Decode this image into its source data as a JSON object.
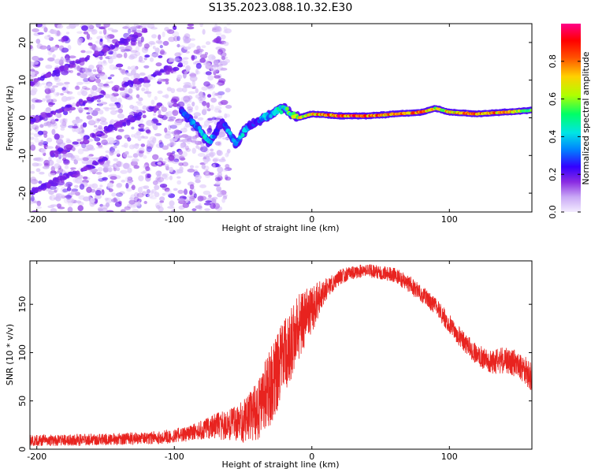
{
  "figure_title": "S135.2023.088.10.32.E30",
  "chart_data": [
    {
      "type": "heatmap",
      "panel": "top",
      "xlabel": "Height of straight line (km)",
      "ylabel": "Frequency (Hz)",
      "xlim": [
        -205,
        160
      ],
      "ylim": [
        -25,
        25
      ],
      "xticks": [
        -200,
        -100,
        0,
        100
      ],
      "yticks": [
        20,
        10,
        0,
        -10,
        -20
      ],
      "grid": false,
      "colorbar": {
        "label": "Normalized spectral amplitude",
        "range": [
          0,
          1
        ],
        "ticks": [
          0.0,
          0.2,
          0.4,
          0.6,
          0.8
        ],
        "colormap": [
          "#f0e6ff",
          "#c9a8f5",
          "#8a2be2",
          "#3300ff",
          "#0080ff",
          "#00e5e5",
          "#00ff66",
          "#b0ff00",
          "#ffd000",
          "#ff5000",
          "#ff0000",
          "#ff0088"
        ]
      },
      "features": {
        "noise_region_x": [
          -205,
          -60
        ],
        "ridge": [
          {
            "x": -95,
            "y": 2,
            "amplitude": 0.35
          },
          {
            "x": -90,
            "y": 0,
            "amplitude": 0.3
          },
          {
            "x": -85,
            "y": -2,
            "amplitude": 0.4
          },
          {
            "x": -80,
            "y": -4,
            "amplitude": 0.45
          },
          {
            "x": -75,
            "y": -6.5,
            "amplitude": 0.55
          },
          {
            "x": -70,
            "y": -4,
            "amplitude": 0.3
          },
          {
            "x": -65,
            "y": -1,
            "amplitude": 0.25
          },
          {
            "x": -60,
            "y": -4,
            "amplitude": 0.45
          },
          {
            "x": -55,
            "y": -7,
            "amplitude": 0.35
          },
          {
            "x": -50,
            "y": -4,
            "amplitude": 0.5
          },
          {
            "x": -45,
            "y": -2,
            "amplitude": 0.3
          },
          {
            "x": -40,
            "y": -1,
            "amplitude": 0.3
          },
          {
            "x": -35,
            "y": 0,
            "amplitude": 0.45
          },
          {
            "x": -30,
            "y": 0.5,
            "amplitude": 0.4
          },
          {
            "x": -25,
            "y": 2,
            "amplitude": 0.55
          },
          {
            "x": -20,
            "y": 2.5,
            "amplitude": 0.5
          },
          {
            "x": -15,
            "y": 1,
            "amplitude": 0.6
          },
          {
            "x": -10,
            "y": 0,
            "amplitude": 0.7
          },
          {
            "x": 0,
            "y": 1,
            "amplitude": 0.75
          },
          {
            "x": 20,
            "y": 0.5,
            "amplitude": 0.9
          },
          {
            "x": 40,
            "y": 0.5,
            "amplitude": 0.85
          },
          {
            "x": 60,
            "y": 1,
            "amplitude": 0.8
          },
          {
            "x": 80,
            "y": 1.5,
            "amplitude": 0.85
          },
          {
            "x": 90,
            "y": 2.5,
            "amplitude": 0.7
          },
          {
            "x": 100,
            "y": 1.5,
            "amplitude": 0.75
          },
          {
            "x": 120,
            "y": 1,
            "amplitude": 0.85
          },
          {
            "x": 140,
            "y": 1.5,
            "amplitude": 0.8
          },
          {
            "x": 160,
            "y": 2,
            "amplitude": 0.6
          }
        ]
      }
    },
    {
      "type": "line",
      "panel": "bottom",
      "xlabel": "Height of straight line (km)",
      "ylabel": "SNR (10 * v/v)",
      "xlim": [
        -205,
        160
      ],
      "ylim": [
        0,
        195
      ],
      "xticks": [
        -200,
        -100,
        0,
        100
      ],
      "yticks": [
        0,
        50,
        100,
        150
      ],
      "grid": false,
      "color": "#e8231f",
      "envelope": {
        "x": [
          -205,
          -150,
          -110,
          -90,
          -80,
          -70,
          -60,
          -50,
          -40,
          -30,
          -20,
          -10,
          0,
          10,
          20,
          30,
          40,
          50,
          60,
          70,
          80,
          90,
          100,
          110,
          120,
          130,
          140,
          150,
          160
        ],
        "y": [
          9,
          10,
          12,
          16,
          20,
          24,
          25,
          28,
          40,
          65,
          95,
          125,
          145,
          165,
          178,
          183,
          185,
          183,
          180,
          172,
          160,
          148,
          130,
          112,
          98,
          90,
          92,
          88,
          75
        ],
        "spread": [
          6,
          6,
          7,
          8,
          10,
          14,
          16,
          22,
          32,
          40,
          40,
          35,
          25,
          12,
          8,
          7,
          7,
          7,
          8,
          9,
          9,
          9,
          10,
          10,
          11,
          12,
          14,
          14,
          16
        ]
      }
    }
  ]
}
